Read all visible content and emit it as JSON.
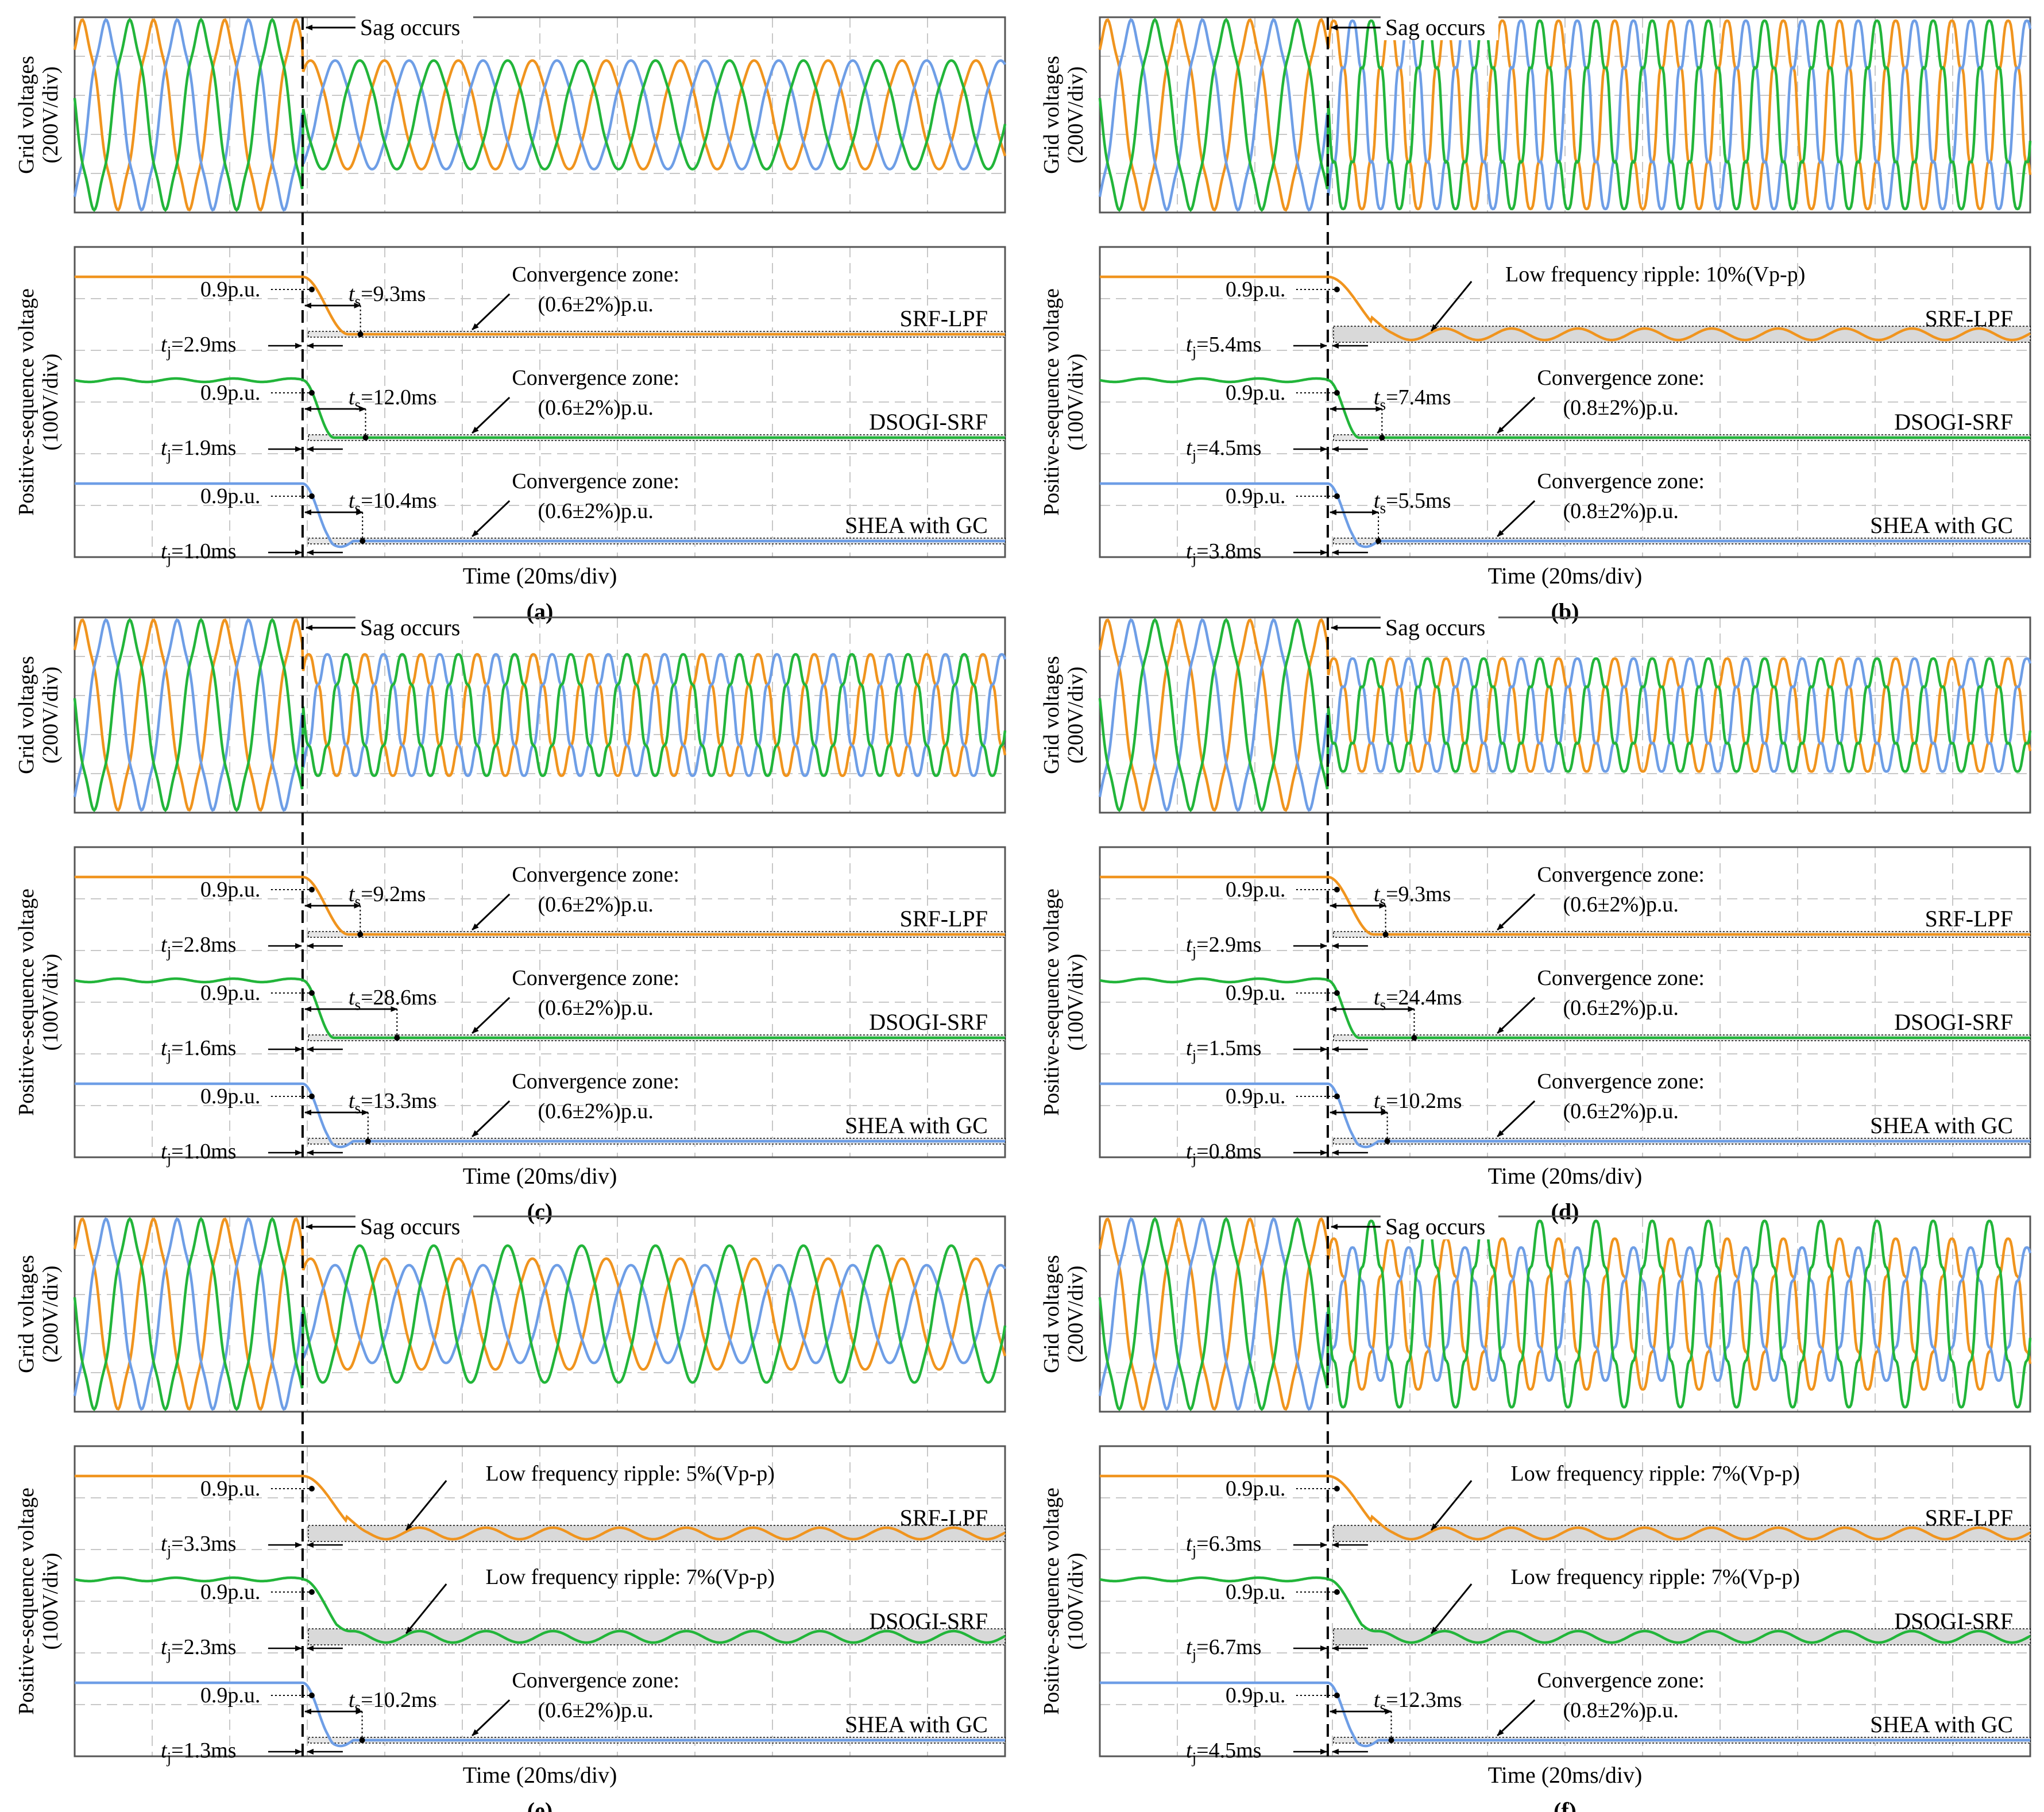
{
  "colors": {
    "orange": "#F0941E",
    "blue": "#6E9EE6",
    "green": "#22B53A",
    "grid": "#c8c8c8",
    "frame": "#555555"
  },
  "labels": {
    "grid_ylabel": [
      "Grid voltages",
      "(200V/div)"
    ],
    "pos_ylabel": [
      "Positive-sequence voltage",
      "(100V/div)"
    ],
    "xlabel": "Time (20ms/div)",
    "sag": "Sag occurs"
  },
  "chart_data": [
    {
      "id": "a",
      "type": "line",
      "caption": "(a)",
      "grid_voltages": {
        "series": [
          "orange",
          "blue",
          "green"
        ],
        "cycles_before": 3.2,
        "cycles_after": 9.5,
        "amp_after": 0.6,
        "harmonics_after": 0.02,
        "unbalanced": false
      },
      "methods": [
        {
          "name": "SRF-LPF",
          "color": "orange",
          "pre_label": "0.9p.u.",
          "tj": "=2.9ms",
          "ts": "=9.3ms",
          "zone": [
            "Convergence zone:",
            "(0.6±2%)p.u."
          ],
          "ripple": "",
          "final_pu": 0.6
        },
        {
          "name": "DSOGI-SRF",
          "color": "green",
          "pre_label": "0.9p.u.",
          "tj": "=1.9ms",
          "ts": "=12.0ms",
          "zone": [
            "Convergence zone:",
            "(0.6±2%)p.u."
          ],
          "ripple": "",
          "final_pu": 0.6
        },
        {
          "name": "SHEA with GC",
          "color": "blue",
          "pre_label": "0.9p.u.",
          "tj": "=1.0ms",
          "ts": "=10.4ms",
          "zone": [
            "Convergence zone:",
            "(0.6±2%)p.u."
          ],
          "ripple": "",
          "final_pu": 0.6
        }
      ]
    },
    {
      "id": "b",
      "type": "line",
      "caption": "(b)",
      "grid_voltages": {
        "series": [
          "orange",
          "blue",
          "green"
        ],
        "cycles_before": 3.2,
        "cycles_after": 12.5,
        "amp_after": 1.0,
        "harmonics_after": 0.12,
        "unbalanced": false
      },
      "methods": [
        {
          "name": "SRF-LPF",
          "color": "orange",
          "pre_label": "0.9p.u.",
          "tj": "=5.4ms",
          "ts": "",
          "zone": [],
          "ripple": "Low frequency ripple: 10%(Vp-p)",
          "final_pu": 0.8
        },
        {
          "name": "DSOGI-SRF",
          "color": "green",
          "pre_label": "0.9p.u.",
          "tj": "=4.5ms",
          "ts": "=7.4ms",
          "zone": [
            "Convergence zone:",
            "(0.8±2%)p.u."
          ],
          "ripple": "",
          "final_pu": 0.8
        },
        {
          "name": "SHEA with GC",
          "color": "blue",
          "pre_label": "0.9p.u.",
          "tj": "=3.8ms",
          "ts": "=5.5ms",
          "zone": [
            "Convergence zone:",
            "(0.8±2%)p.u."
          ],
          "ripple": "",
          "final_pu": 0.8
        }
      ]
    },
    {
      "id": "c",
      "type": "line",
      "caption": "(c)",
      "grid_voltages": {
        "series": [
          "orange",
          "blue",
          "green"
        ],
        "cycles_before": 3.2,
        "cycles_after": 12.5,
        "amp_after": 0.65,
        "harmonics_after": 0.1,
        "unbalanced": false
      },
      "methods": [
        {
          "name": "SRF-LPF",
          "color": "orange",
          "pre_label": "0.9p.u.",
          "tj": "=2.8ms",
          "ts": "=9.2ms",
          "zone": [
            "Convergence zone:",
            "(0.6±2%)p.u."
          ],
          "ripple": "",
          "final_pu": 0.6
        },
        {
          "name": "DSOGI-SRF",
          "color": "green",
          "pre_label": "0.9p.u.",
          "tj": "=1.6ms",
          "ts": "=28.6ms",
          "zone": [
            "Convergence zone:",
            "(0.6±2%)p.u."
          ],
          "ripple": "",
          "final_pu": 0.6
        },
        {
          "name": "SHEA with GC",
          "color": "blue",
          "pre_label": "0.9p.u.",
          "tj": "=1.0ms",
          "ts": "=13.3ms",
          "zone": [
            "Convergence zone:",
            "(0.6±2%)p.u."
          ],
          "ripple": "",
          "final_pu": 0.6
        }
      ]
    },
    {
      "id": "d",
      "type": "line",
      "caption": "(d)",
      "grid_voltages": {
        "series": [
          "orange",
          "blue",
          "green"
        ],
        "cycles_before": 3.2,
        "cycles_after": 12.5,
        "amp_after": 0.6,
        "harmonics_after": 0.12,
        "unbalanced": false
      },
      "methods": [
        {
          "name": "SRF-LPF",
          "color": "orange",
          "pre_label": "0.9p.u.",
          "tj": "=2.9ms",
          "ts": "=9.3ms",
          "zone": [
            "Convergence zone:",
            "(0.6±2%)p.u."
          ],
          "ripple": "",
          "final_pu": 0.6
        },
        {
          "name": "DSOGI-SRF",
          "color": "green",
          "pre_label": "0.9p.u.",
          "tj": "=1.5ms",
          "ts": "=24.4ms",
          "zone": [
            "Convergence zone:",
            "(0.6±2%)p.u."
          ],
          "ripple": "",
          "final_pu": 0.6
        },
        {
          "name": "SHEA with GC",
          "color": "blue",
          "pre_label": "0.9p.u.",
          "tj": "=0.8ms",
          "ts": "=10.2ms",
          "zone": [
            "Convergence zone:",
            "(0.6±2%)p.u."
          ],
          "ripple": "",
          "final_pu": 0.6
        }
      ]
    },
    {
      "id": "e",
      "type": "line",
      "caption": "(e)",
      "grid_voltages": {
        "series": [
          "orange",
          "blue",
          "green"
        ],
        "cycles_before": 3.2,
        "cycles_after": 9.5,
        "amp_after": 0.72,
        "harmonics_after": 0.02,
        "unbalanced": true
      },
      "methods": [
        {
          "name": "SRF-LPF",
          "color": "orange",
          "pre_label": "0.9p.u.",
          "tj": "=3.3ms",
          "ts": "",
          "zone": [],
          "ripple": "Low frequency ripple: 5%(Vp-p)",
          "final_pu": 0.6
        },
        {
          "name": "DSOGI-SRF",
          "color": "green",
          "pre_label": "0.9p.u.",
          "tj": "=2.3ms",
          "ts": "",
          "zone": [],
          "ripple": "Low frequency ripple: 7%(Vp-p)",
          "final_pu": 0.6
        },
        {
          "name": "SHEA with GC",
          "color": "blue",
          "pre_label": "0.9p.u.",
          "tj": "=1.3ms",
          "ts": "=10.2ms",
          "zone": [
            "Convergence zone:",
            "(0.6±2%)p.u."
          ],
          "ripple": "",
          "final_pu": 0.6
        }
      ]
    },
    {
      "id": "f",
      "type": "line",
      "caption": "(f)",
      "grid_voltages": {
        "series": [
          "orange",
          "blue",
          "green"
        ],
        "cycles_before": 3.2,
        "cycles_after": 12.5,
        "amp_after": 0.95,
        "harmonics_after": 0.1,
        "unbalanced": true
      },
      "methods": [
        {
          "name": "SRF-LPF",
          "color": "orange",
          "pre_label": "0.9p.u.",
          "tj": "=6.3ms",
          "ts": "",
          "zone": [],
          "ripple": "Low frequency ripple: 7%(Vp-p)",
          "final_pu": 0.8
        },
        {
          "name": "DSOGI-SRF",
          "color": "green",
          "pre_label": "0.9p.u.",
          "tj": "=6.7ms",
          "ts": "",
          "zone": [],
          "ripple": "Low frequency ripple: 7%(Vp-p)",
          "final_pu": 0.8
        },
        {
          "name": "SHEA with GC",
          "color": "blue",
          "pre_label": "0.9p.u.",
          "tj": "=4.5ms",
          "ts": "=12.3ms",
          "zone": [
            "Convergence zone:",
            "(0.8±2%)p.u."
          ],
          "ripple": "",
          "final_pu": 0.8
        }
      ]
    }
  ]
}
